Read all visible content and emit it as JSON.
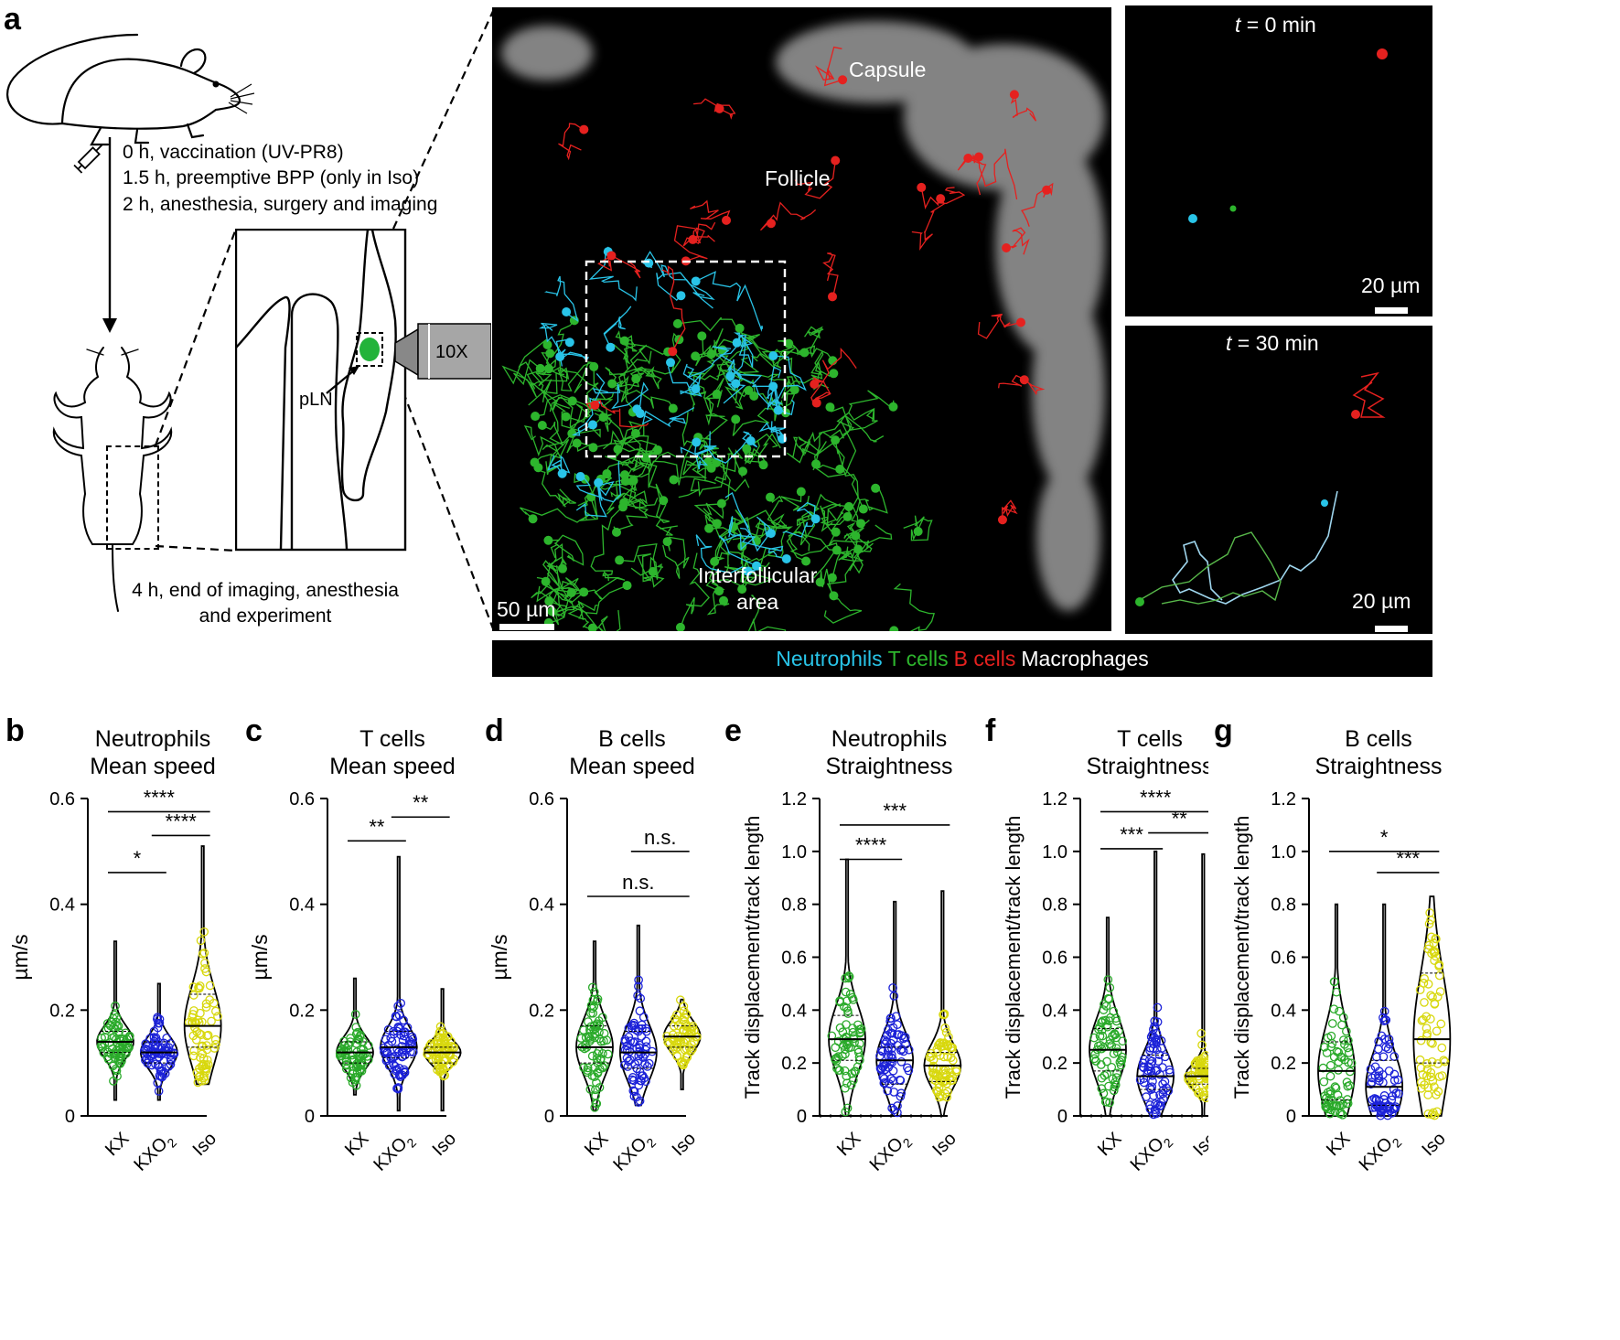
{
  "panel_a": {
    "letter": "a",
    "timeline": [
      "0 h, vaccination (UV-PR8)",
      "1.5 h, preemptive BPP (only in Iso)",
      "2 h, anesthesia, surgery and imaging"
    ],
    "end_text_line1": "4 h, end of imaging, anesthesia",
    "end_text_line2": "and experiment",
    "objective_label": "10X",
    "pln_label": "pLN",
    "main_image": {
      "capsule": "Capsule",
      "follicle": "Follicle",
      "interfollicular_line1": "Interfollicular",
      "interfollicular_line2": "area",
      "scale": "50 µm"
    },
    "inset_t0": {
      "time_prefix": "t",
      "time_rest": " = 0 min",
      "scale": "20 µm"
    },
    "inset_t30": {
      "time_prefix": "t",
      "time_rest": " = 30 min",
      "scale": "20 µm"
    },
    "legend": [
      {
        "label": "Neutrophils",
        "color": "#29c4e8"
      },
      {
        "label": "T cells",
        "color": "#2db52d"
      },
      {
        "label": "B cells",
        "color": "#e5211f"
      },
      {
        "label": "Macrophages",
        "color": "#ffffff"
      }
    ]
  },
  "colors": {
    "KX": "#2aaa2a",
    "KXO2": "#1c22d8",
    "Iso": "#d8d80e",
    "neutrophil": "#29c4e8",
    "tcell": "#2db52d",
    "bcell": "#e5211f"
  },
  "chart_data": [
    {
      "letter": "b",
      "type": "violin",
      "title": [
        "Neutrophils",
        "Mean speed"
      ],
      "ylabel": "µm/s",
      "ylim": [
        0,
        0.6
      ],
      "yticks": [
        "0",
        "0.2",
        "0.4",
        "0.6"
      ],
      "ytick_values": [
        0,
        0.2,
        0.4,
        0.6
      ],
      "categories": [
        "KX",
        "KXO",
        "Iso"
      ],
      "subscript": "2",
      "medians": [
        0.14,
        0.12,
        0.17
      ],
      "quartiles": [
        [
          0.12,
          0.16
        ],
        [
          0.1,
          0.14
        ],
        [
          0.13,
          0.23
        ]
      ],
      "ranges": [
        [
          0.03,
          0.33
        ],
        [
          0.03,
          0.25
        ],
        [
          0.06,
          0.51
        ]
      ],
      "brackets": [
        {
          "from": 0,
          "to": 2,
          "y": 0.575,
          "label": "****"
        },
        {
          "from": 1,
          "to": 2,
          "y": 0.53,
          "label": "****"
        },
        {
          "from": 0,
          "to": 1,
          "y": 0.46,
          "label": "*"
        }
      ],
      "dotted_zero": false
    },
    {
      "letter": "c",
      "type": "violin",
      "title": [
        "T cells",
        "Mean speed"
      ],
      "ylabel": "µm/s",
      "ylim": [
        0,
        0.6
      ],
      "yticks": [
        "0",
        "0.2",
        "0.4",
        "0.6"
      ],
      "ytick_values": [
        0,
        0.2,
        0.4,
        0.6
      ],
      "categories": [
        "KX",
        "KXO",
        "Iso"
      ],
      "subscript": "2",
      "medians": [
        0.12,
        0.13,
        0.12
      ],
      "quartiles": [
        [
          0.1,
          0.14
        ],
        [
          0.11,
          0.16
        ],
        [
          0.1,
          0.13
        ]
      ],
      "ranges": [
        [
          0.04,
          0.26
        ],
        [
          0.01,
          0.49
        ],
        [
          0.01,
          0.24
        ]
      ],
      "brackets": [
        {
          "from": 0,
          "to": 1,
          "y": 0.52,
          "label": "**"
        },
        {
          "from": 1,
          "to": 2,
          "y": 0.565,
          "label": "**"
        }
      ],
      "dotted_zero": false
    },
    {
      "letter": "d",
      "type": "violin",
      "title": [
        "B cells",
        "Mean speed"
      ],
      "ylabel": "µm/s",
      "ylim": [
        0,
        0.6
      ],
      "yticks": [
        "0",
        "0.2",
        "0.4",
        "0.6"
      ],
      "ytick_values": [
        0,
        0.2,
        0.4,
        0.6
      ],
      "categories": [
        "KX",
        "KXO",
        "Iso"
      ],
      "subscript": "2",
      "medians": [
        0.13,
        0.12,
        0.15
      ],
      "quartiles": [
        [
          0.1,
          0.17
        ],
        [
          0.09,
          0.16
        ],
        [
          0.13,
          0.17
        ]
      ],
      "ranges": [
        [
          0.01,
          0.33
        ],
        [
          0.02,
          0.36
        ],
        [
          0.05,
          0.22
        ]
      ],
      "brackets": [
        {
          "from": 1,
          "to": 2,
          "y": 0.5,
          "label": "n.s."
        },
        {
          "from": 0,
          "to": 2,
          "y": 0.415,
          "label": "n.s."
        }
      ],
      "dotted_zero": false
    },
    {
      "letter": "e",
      "type": "violin",
      "title": [
        "Neutrophils",
        "Straightness"
      ],
      "ylabel": "Track displacement/track length",
      "ylim": [
        0,
        1.2
      ],
      "yticks": [
        "0",
        "0.2",
        "0.4",
        "0.6",
        "0.8",
        "1.0",
        "1.2"
      ],
      "ytick_values": [
        0,
        0.2,
        0.4,
        0.6,
        0.8,
        1.0,
        1.2
      ],
      "categories": [
        "KX",
        "KXO",
        "Iso"
      ],
      "subscript": "2",
      "medians": [
        0.29,
        0.21,
        0.19
      ],
      "quartiles": [
        [
          0.21,
          0.38
        ],
        [
          0.12,
          0.26
        ],
        [
          0.13,
          0.24
        ]
      ],
      "ranges": [
        [
          0.0,
          0.97
        ],
        [
          0.0,
          0.81
        ],
        [
          0.0,
          0.85
        ]
      ],
      "brackets": [
        {
          "from": 0,
          "to": 2,
          "y": 1.1,
          "label": "***"
        },
        {
          "from": 0,
          "to": 1,
          "y": 0.97,
          "label": "****"
        }
      ],
      "dotted_zero": true
    },
    {
      "letter": "f",
      "type": "violin",
      "title": [
        "T cells",
        "Straightness"
      ],
      "ylabel": "Track displacement/track length",
      "ylim": [
        0,
        1.2
      ],
      "yticks": [
        "0",
        "0.2",
        "0.4",
        "0.6",
        "0.8",
        "1.0",
        "1.2"
      ],
      "ytick_values": [
        0,
        0.2,
        0.4,
        0.6,
        0.8,
        1.0,
        1.2
      ],
      "categories": [
        "KX",
        "KXO",
        "Iso"
      ],
      "subscript": "2",
      "medians": [
        0.25,
        0.15,
        0.15
      ],
      "quartiles": [
        [
          0.17,
          0.33
        ],
        [
          0.1,
          0.23
        ],
        [
          0.12,
          0.18
        ]
      ],
      "ranges": [
        [
          0.0,
          0.75
        ],
        [
          0.0,
          1.0
        ],
        [
          0.0,
          0.99
        ]
      ],
      "brackets": [
        {
          "from": 0,
          "to": 2,
          "y": 1.15,
          "label": "****"
        },
        {
          "from": 1,
          "to": 2,
          "y": 1.07,
          "label": "**"
        },
        {
          "from": 0,
          "to": 1,
          "y": 1.01,
          "label": "***"
        }
      ],
      "dotted_zero": true
    },
    {
      "letter": "g",
      "type": "violin",
      "title": [
        "B cells",
        "Straightness"
      ],
      "ylabel": "Track displacement/track length",
      "ylim": [
        0,
        1.2
      ],
      "yticks": [
        "0",
        "0.2",
        "0.4",
        "0.6",
        "0.8",
        "1.0",
        "1.2"
      ],
      "ytick_values": [
        0,
        0.2,
        0.4,
        0.6,
        0.8,
        1.0,
        1.2
      ],
      "categories": [
        "KX",
        "KXO",
        "Iso"
      ],
      "subscript": "2",
      "medians": [
        0.17,
        0.11,
        0.29
      ],
      "quartiles": [
        [
          0.06,
          0.28
        ],
        [
          0.04,
          0.21
        ],
        [
          0.2,
          0.54
        ]
      ],
      "ranges": [
        [
          0.0,
          0.8
        ],
        [
          0.0,
          0.8
        ],
        [
          0.0,
          0.83
        ]
      ],
      "brackets": [
        {
          "from": 0,
          "to": 2,
          "y": 1.0,
          "label": "*"
        },
        {
          "from": 1,
          "to": 2,
          "y": 0.92,
          "label": "***"
        }
      ],
      "dotted_zero": false
    }
  ]
}
